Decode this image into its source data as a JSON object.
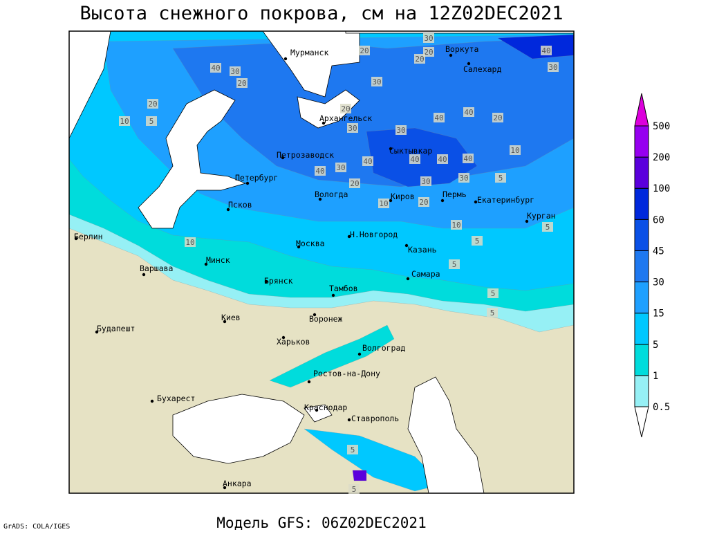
{
  "title": "Высота снежного покрова, см на 12Z02DEC2021",
  "subtitle": "Модель GFS: 06Z02DEC2021",
  "credit": "GrADS: COLA/IGES",
  "colorbar": {
    "levels": [
      0.5,
      1,
      5,
      15,
      30,
      45,
      60,
      100,
      200,
      500
    ],
    "colors": [
      "#ffffff",
      "#96f0f5",
      "#00dcdc",
      "#00c8ff",
      "#1ea0ff",
      "#1e78f0",
      "#0a50e6",
      "#0028dc",
      "#5a00dc",
      "#9600f0",
      "#dc00dc"
    ]
  },
  "land_color": "#e6e2c4",
  "cities": [
    "Мурманск",
    "Воркута",
    "Салехард",
    "Архангельск",
    "Петрозаводск",
    "Сыктывкар",
    "Петербург",
    "Вологда",
    "Киров",
    "Пермь",
    "Екатеринбург",
    "Псков",
    "Курган",
    "Берлин",
    "Н.Новгород",
    "Москва",
    "Казань",
    "Минск",
    "Варшава",
    "Самара",
    "Брянск",
    "Тамбов",
    "Киев",
    "Воронеж",
    "Будапешт",
    "Харьков",
    "Волгоград",
    "Ростов-на-Дону",
    "Бухарест",
    "Краснодар",
    "Ставрополь",
    "Анкара"
  ],
  "contour_labels": [
    30,
    20,
    40,
    30,
    20,
    40,
    30,
    20,
    20,
    30,
    20,
    10,
    5,
    20,
    30,
    30,
    40,
    40,
    20,
    10,
    40,
    40,
    40,
    40,
    40,
    30,
    20,
    30,
    30,
    5,
    10,
    20,
    10,
    5,
    10,
    5,
    5,
    5,
    5,
    5,
    5
  ]
}
